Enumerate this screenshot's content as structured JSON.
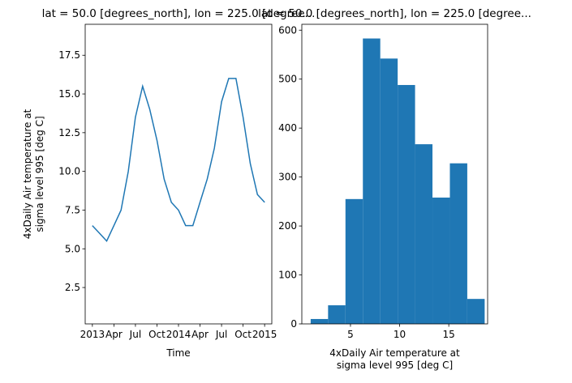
{
  "chart_data": [
    {
      "type": "line",
      "title": "lat = 50.0 [degrees_north], lon = 225.0 [degree...",
      "xlabel": "Time",
      "ylabel": [
        "4xDaily Air temperature at",
        "sigma level 995 [deg C]"
      ],
      "x": [
        "2013-01",
        "2013-02",
        "2013-03",
        "2013-04",
        "2013-05",
        "2013-06",
        "2013-07",
        "2013-08",
        "2013-09",
        "2013-10",
        "2013-11",
        "2013-12",
        "2014-01",
        "2014-02",
        "2014-03",
        "2014-04",
        "2014-05",
        "2014-06",
        "2014-07",
        "2014-08",
        "2014-09",
        "2014-10",
        "2014-11",
        "2014-12",
        "2015-01"
      ],
      "series": [
        {
          "color": "#1f77b4",
          "values": [
            6.5,
            6.0,
            5.5,
            6.5,
            7.5,
            10,
            13.5,
            15.5,
            14,
            12,
            9.5,
            8,
            7.5,
            6.5,
            6.5,
            8,
            9.5,
            11.5,
            14.5,
            16,
            16,
            13.5,
            10.5,
            8.5,
            8
          ]
        }
      ],
      "xlim": [
        "2012-12",
        "2015-02"
      ],
      "xticks": [
        {
          "value": "2013-01",
          "label": "2013"
        },
        {
          "value": "2013-04",
          "label": "Apr"
        },
        {
          "value": "2013-07",
          "label": "Jul"
        },
        {
          "value": "2013-10",
          "label": "Oct"
        },
        {
          "value": "2014-01",
          "label": "2014"
        },
        {
          "value": "2014-04",
          "label": "Apr"
        },
        {
          "value": "2014-07",
          "label": "Jul"
        },
        {
          "value": "2014-10",
          "label": "Oct"
        },
        {
          "value": "2015-01",
          "label": "2015"
        }
      ],
      "ylim": [
        0.15,
        19.5
      ],
      "yticks": [
        2.5,
        {
          "value": 5,
          "label": "5.0"
        },
        7.5,
        {
          "value": 10,
          "label": "10.0"
        },
        12.5,
        {
          "value": 15,
          "label": "15.0"
        },
        17.5
      ]
    },
    {
      "type": "histogram",
      "title": "lat = 50.0 [degrees_north], lon = 225.0 [degree...",
      "xlabel": [
        "4xDaily Air temperature at",
        "sigma level 995 [deg C]"
      ],
      "bins": [
        0.95,
        2.72,
        4.49,
        6.26,
        8.03,
        9.8,
        11.57,
        13.34,
        15.11,
        16.88,
        18.65
      ],
      "values": [
        10,
        38,
        255,
        583,
        542,
        488,
        367,
        258,
        328,
        51
      ],
      "color": "#1f77b4",
      "xlim": [
        0.05,
        18.95
      ],
      "xticks": [
        5,
        10,
        15
      ],
      "ylim": [
        0,
        612
      ],
      "yticks": [
        0,
        100,
        200,
        300,
        400,
        500,
        600
      ]
    }
  ]
}
